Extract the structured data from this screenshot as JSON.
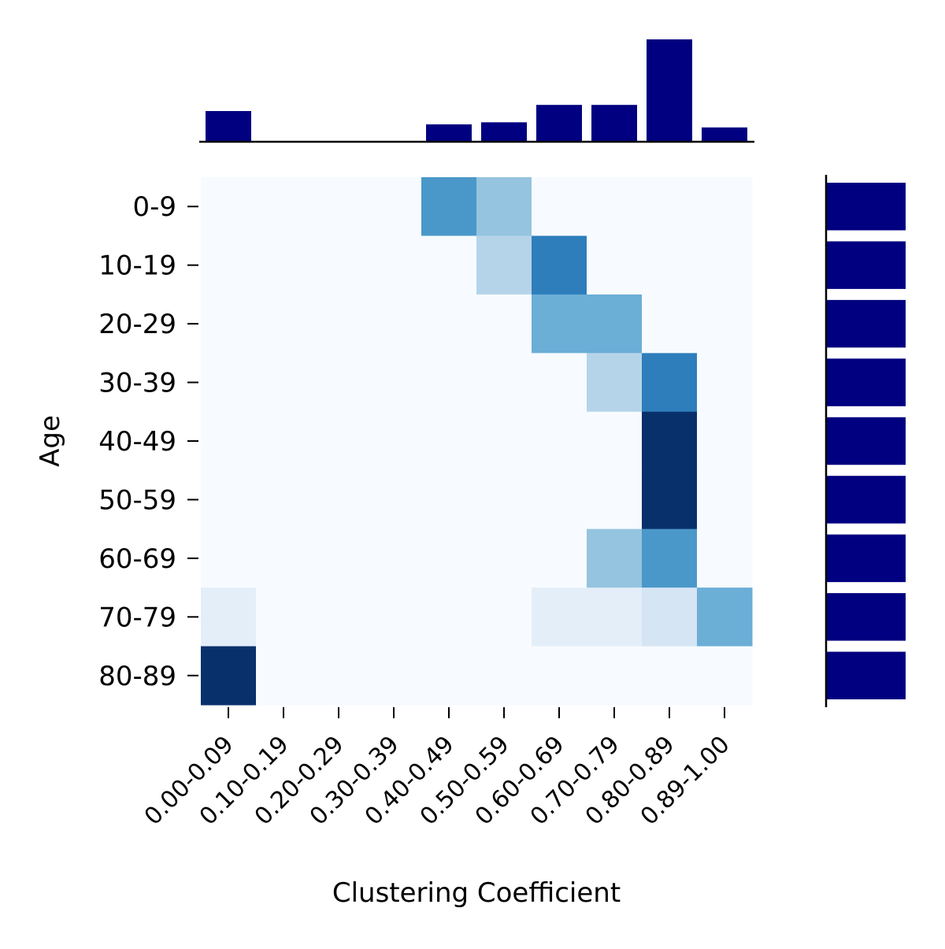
{
  "chart_data": {
    "type": "heatmap",
    "xlabel": "Clustering Coefficient",
    "ylabel": "Age",
    "x_categories": [
      "0.00-0.09",
      "0.10-0.19",
      "0.20-0.29",
      "0.30-0.39",
      "0.40-0.49",
      "0.50-0.59",
      "0.60-0.69",
      "0.70-0.79",
      "0.80-0.89",
      "0.89-1.00"
    ],
    "y_categories": [
      "0-9",
      "10-19",
      "20-29",
      "30-39",
      "40-49",
      "50-59",
      "60-69",
      "70-79",
      "80-89"
    ],
    "values": [
      [
        0,
        0,
        0,
        0,
        0.6,
        0.4,
        0,
        0,
        0,
        0
      ],
      [
        0,
        0,
        0,
        0,
        0,
        0.3,
        0.7,
        0,
        0,
        0
      ],
      [
        0,
        0,
        0,
        0,
        0,
        0,
        0.5,
        0.5,
        0,
        0
      ],
      [
        0,
        0,
        0,
        0,
        0,
        0,
        0,
        0.3,
        0.7,
        0
      ],
      [
        0,
        0,
        0,
        0,
        0,
        0,
        0,
        0,
        1.0,
        0
      ],
      [
        0,
        0,
        0,
        0,
        0,
        0,
        0,
        0,
        1.0,
        0
      ],
      [
        0,
        0,
        0,
        0,
        0,
        0,
        0,
        0.4,
        0.6,
        0
      ],
      [
        0.1,
        0,
        0,
        0,
        0,
        0,
        0.1,
        0.1,
        0.17,
        0.5
      ],
      [
        1.0,
        0,
        0,
        0,
        0,
        0,
        0,
        0,
        0,
        0
      ]
    ],
    "colorscale": "Blues",
    "top_marginal": {
      "type": "bar",
      "color": "#000080",
      "values": [
        0.3,
        0,
        0,
        0,
        0.17,
        0.19,
        0.36,
        0.36,
        1.0,
        0.14
      ]
    },
    "right_marginal": {
      "type": "bar",
      "color": "#000080",
      "values": [
        1,
        1,
        1,
        1,
        1,
        1,
        1,
        1,
        1
      ]
    },
    "grid": false
  }
}
